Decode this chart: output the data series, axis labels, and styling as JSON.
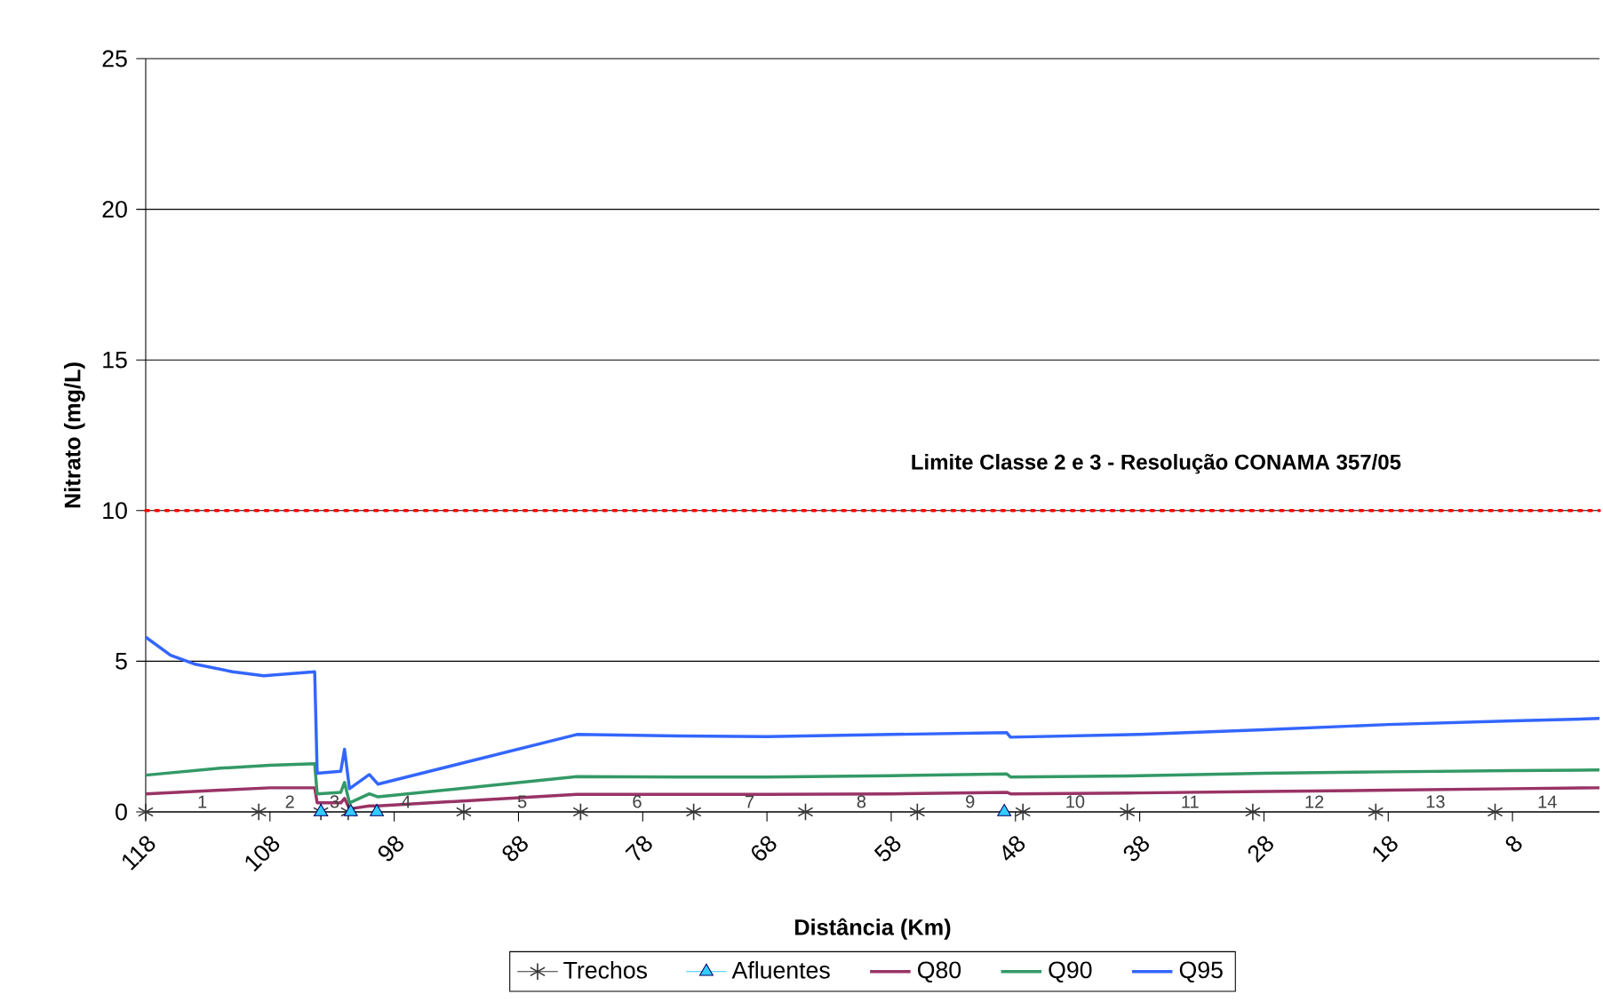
{
  "chart_data": {
    "type": "line",
    "xlabel": "Distância (Km)",
    "ylabel": "Nitrato (mg/L)",
    "xlim": [
      118,
      1
    ],
    "xticks": [
      118,
      108,
      98,
      88,
      78,
      68,
      58,
      48,
      38,
      28,
      18,
      8
    ],
    "ylim": [
      0,
      25
    ],
    "yticks": [
      0,
      5,
      10,
      15,
      20,
      25
    ],
    "grid": "y",
    "legend": "bottom",
    "ref_lines": [
      {
        "axis": "y",
        "value": 10,
        "label": "Limite Classe 2 e 3 - Resolução CONAMA 357/05",
        "color": "#ff0000",
        "line_style": "dotted"
      }
    ],
    "series": [
      {
        "name": "Trechos",
        "type": "scatter",
        "marker": "cross",
        "color": "#333333",
        "x": [
          118,
          108.9,
          103.9,
          101.7,
          92.4,
          83,
          73.9,
          64.9,
          55.9,
          47.4,
          39,
          28.9,
          19,
          9.4
        ],
        "values": [
          0,
          0,
          0,
          0,
          0,
          0,
          0,
          0,
          0,
          0,
          0,
          0,
          0,
          0
        ]
      },
      {
        "name": "Afluentes",
        "type": "scatter",
        "marker": "triangle",
        "color": "#33ccff",
        "x": [
          103.9,
          101.5,
          99.4,
          48.9
        ],
        "values": [
          0,
          0,
          0,
          0
        ]
      },
      {
        "name": "Q80",
        "marker": "none",
        "color": "#993366",
        "x": [
          118,
          112,
          108,
          104.4,
          104.2,
          102.3,
          102,
          101.6,
          100,
          99.3,
          83.3,
          75,
          68,
          58,
          48.7,
          48.4,
          38,
          28,
          18,
          8,
          1
        ],
        "values": [
          0.6,
          0.72,
          0.8,
          0.8,
          0.3,
          0.3,
          0.45,
          0.1,
          0.2,
          0.2,
          0.58,
          0.58,
          0.58,
          0.6,
          0.65,
          0.6,
          0.63,
          0.68,
          0.72,
          0.77,
          0.8
        ]
      },
      {
        "name": "Q90",
        "marker": "none",
        "color": "#339966",
        "x": [
          118,
          112,
          108,
          104.4,
          104.2,
          102.3,
          102,
          101.6,
          100,
          99.3,
          83.3,
          75,
          68,
          58,
          48.7,
          48.4,
          38,
          28,
          18,
          8,
          1
        ],
        "values": [
          1.22,
          1.45,
          1.55,
          1.6,
          0.6,
          0.65,
          0.98,
          0.3,
          0.6,
          0.5,
          1.17,
          1.16,
          1.16,
          1.2,
          1.26,
          1.16,
          1.2,
          1.28,
          1.33,
          1.37,
          1.39
        ]
      },
      {
        "name": "Q95",
        "marker": "none",
        "color": "#3366ff",
        "x": [
          118,
          116,
          114,
          111,
          108.5,
          104.4,
          104.2,
          102.3,
          102,
          101.6,
          100,
          99.3,
          83.3,
          75,
          68,
          58,
          48.7,
          48.4,
          38,
          28,
          18,
          8,
          1
        ],
        "values": [
          5.8,
          5.2,
          4.9,
          4.65,
          4.52,
          4.65,
          1.28,
          1.35,
          2.08,
          0.77,
          1.24,
          0.92,
          2.57,
          2.52,
          2.5,
          2.57,
          2.63,
          2.48,
          2.57,
          2.73,
          2.9,
          3.02,
          3.1
        ]
      }
    ],
    "annotations": [
      "1",
      "2",
      "3",
      "4",
      "5",
      "6",
      "7",
      "8",
      "9",
      "10",
      "11",
      "12",
      "13",
      "14"
    ]
  }
}
